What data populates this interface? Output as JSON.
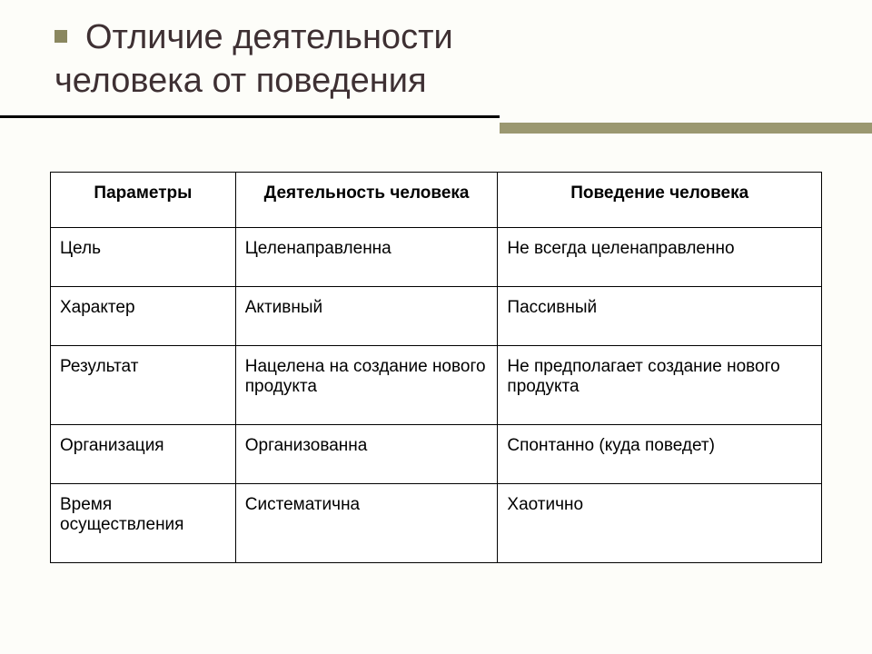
{
  "title_line1": "Отличие деятельности",
  "title_line2": "человека от поведения",
  "table": {
    "columns": [
      "Параметры",
      "Деятельность человека",
      "Поведение человека"
    ],
    "rows": [
      [
        "Цель",
        "Целенаправленна",
        "Не всегда целенаправленно"
      ],
      [
        "Характер",
        "Активный",
        "Пассивный"
      ],
      [
        "Результат",
        "Нацелена на создание нового продукта",
        "Не предполагает создание нового продукта"
      ],
      [
        "Организация",
        "Организованна",
        "Спонтанно (куда поведет)"
      ],
      [
        "Время осуществления",
        "Систематична",
        "Хаотично"
      ]
    ],
    "col_widths_pct": [
      24,
      34,
      42
    ],
    "border_color": "#000000",
    "cell_bg": "#ffffff",
    "font_size": 19
  },
  "colors": {
    "title_color": "#3e3033",
    "bullet_color": "#8a8760",
    "divider_thin": "#000000",
    "divider_thick": "#9b9871",
    "slide_bg": "#fdfdf9"
  },
  "title_fontsize": 38
}
